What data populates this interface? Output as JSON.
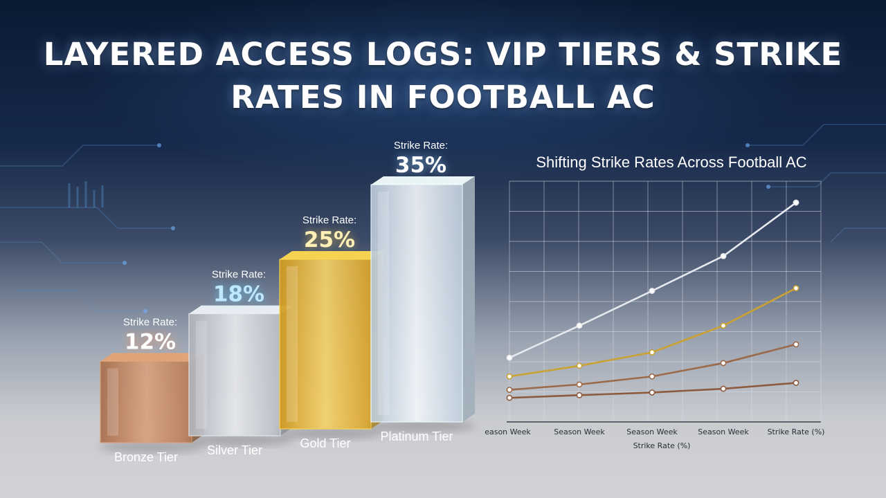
{
  "page": {
    "title": "LAYERED ACCESS LOGS: VIP TIERS & STRIKE RATES IN FOOTBALL AC"
  },
  "colors": {
    "bronze": "#c08a64",
    "silver": "#c9ccd2",
    "gold": "#e6b843",
    "platinum": "#cfe0ee",
    "line_white": "#e6e9ee",
    "line_gold": "#c9a233",
    "line_copper": "#9a6a4a",
    "line_bronze": "#8d5a3e"
  },
  "chart_data": [
    {
      "type": "bar",
      "title": "",
      "categories": [
        "Bronze Tier",
        "Silver Tier",
        "Gold Tier",
        "Platinum Tier"
      ],
      "values": [
        12,
        18,
        25,
        35
      ],
      "value_prefix": "Strike Rate:",
      "value_labels": [
        "12%",
        "18%",
        "25%",
        "35%"
      ],
      "unit": "%",
      "ylim": [
        0,
        40
      ]
    },
    {
      "type": "line",
      "title": "Shifting Strike Rates Across Football AC",
      "xlabel": "Strike Rate (%)",
      "x_tick_labels": [
        "Season Week",
        "Season Week",
        "Season Week",
        "Season Week",
        "Strike Rate (%)"
      ],
      "x": [
        1,
        2,
        3,
        4,
        5
      ],
      "ylim": [
        0,
        45
      ],
      "grid": true,
      "series": [
        {
          "color": "#e6e9ee",
          "values": [
            12,
            18,
            24.5,
            31,
            41
          ]
        },
        {
          "color": "#c9a233",
          "values": [
            8.5,
            10.5,
            13,
            18,
            25
          ]
        },
        {
          "color": "#9a6a4a",
          "values": [
            6,
            7,
            8.5,
            11,
            14.5
          ]
        },
        {
          "color": "#8d5a3e",
          "values": [
            4.5,
            5,
            5.5,
            6.2,
            7.3
          ]
        }
      ]
    }
  ]
}
